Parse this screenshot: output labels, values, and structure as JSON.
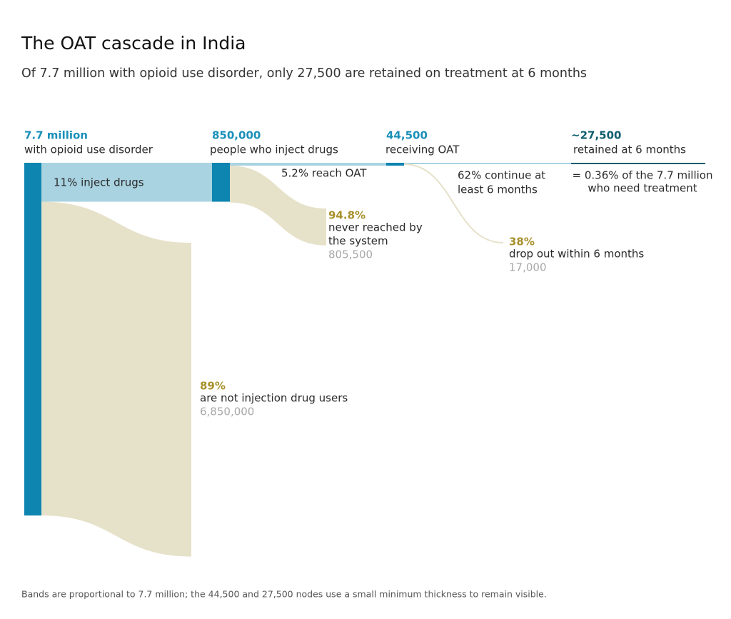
{
  "chart_data": {
    "type": "sankey",
    "title": "The OAT cascade in India",
    "subtitle": "Of 7.7 million with opioid use disorder, only 27,500 are retained on treatment at 6 months",
    "footnote": "Bands are proportional to 7.7 million; the 44,500 and 27,500 nodes use a small minimum thickness to remain visible.",
    "node_color": "#0e84b0",
    "final_color": "#0f5e6e",
    "flow_color": "#a9d3e1",
    "exit_color": "#e6e1c9",
    "stages": [
      {
        "value": 7700000,
        "value_label": "7.7 million",
        "name": "with opioid use disorder",
        "continue_label": [
          "11% inject drugs"
        ],
        "exit": {
          "value": 6850000,
          "value_label": "6,850,000",
          "share": "89%",
          "label": [
            "are not injection drug users"
          ]
        }
      },
      {
        "value": 850000,
        "value_label": "850,000",
        "name": "people who inject drugs",
        "continue_label": [
          "5.2% reach OAT"
        ],
        "exit": {
          "value": 805500,
          "value_label": "805,500",
          "share": "94.8%",
          "label": [
            "never reached by",
            "the system"
          ]
        }
      },
      {
        "value": 44500,
        "value_label": "44,500",
        "name": "receiving OAT",
        "continue_label": [
          "62% continue at",
          "least 6 months"
        ],
        "exit": {
          "value": 17000,
          "value_label": "17,000",
          "share": "38%",
          "label": [
            "drop out within 6 months"
          ]
        }
      },
      {
        "value": 27500,
        "value_label": "~27,500",
        "name": "retained at 6 months",
        "note": [
          "= 0.36% of the 7.7 million",
          "who need treatment"
        ]
      }
    ]
  }
}
